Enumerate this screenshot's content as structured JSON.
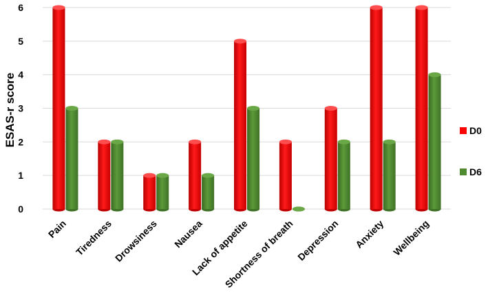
{
  "chart_data": {
    "type": "bar",
    "title": "",
    "xlabel": "",
    "ylabel": "ESAS-r score",
    "ylim": [
      0,
      6
    ],
    "yticks": [
      "0",
      "1",
      "2",
      "3",
      "4",
      "5",
      "6"
    ],
    "grid": true,
    "legend_position": "right",
    "categories": [
      "Pain",
      "Tiredness",
      "Drowsiness",
      "Nausea",
      "Lack of appetite",
      "Shortness of breath",
      "Depression",
      "Anxiety",
      "Wellbeing"
    ],
    "series": [
      {
        "name": "D0",
        "color": "#ff0000",
        "values": [
          6,
          2,
          1,
          2,
          5,
          2,
          3,
          6,
          6
        ]
      },
      {
        "name": "D6",
        "color": "#4e8a2f",
        "values": [
          3,
          2,
          1,
          1,
          3,
          0,
          2,
          2,
          4
        ]
      }
    ]
  }
}
